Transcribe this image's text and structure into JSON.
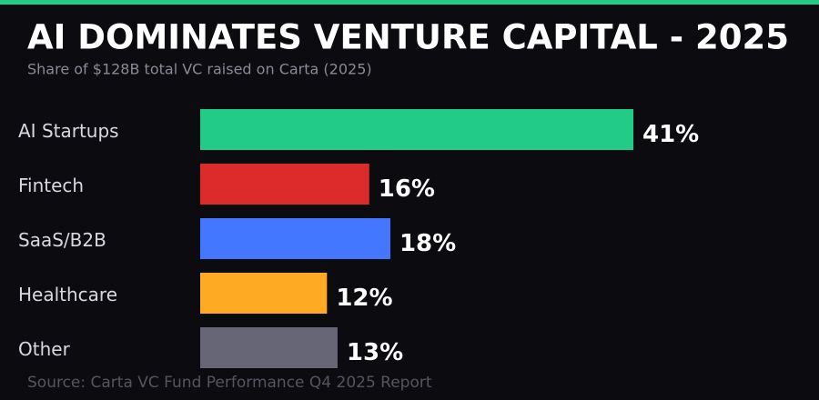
{
  "chart_data": {
    "type": "hbar",
    "title": "AI DOMINATES VENTURE CAPITAL - 2025",
    "subtitle": "Share of $128B total VC raised on Carta (2025)",
    "source": "Source: Carta VC Fund Performance Q4 2025 Report",
    "categories": [
      "AI Startups",
      "Fintech",
      "SaaS/B2B",
      "Healthcare",
      "Other"
    ],
    "values": [
      41,
      16,
      18,
      12,
      13
    ],
    "value_labels": [
      "41%",
      "16%",
      "18%",
      "12%",
      "13%"
    ],
    "colors": [
      "#22cc88",
      "#dd2a2a",
      "#4477ff",
      "#ffaa22",
      "#666677"
    ]
  }
}
